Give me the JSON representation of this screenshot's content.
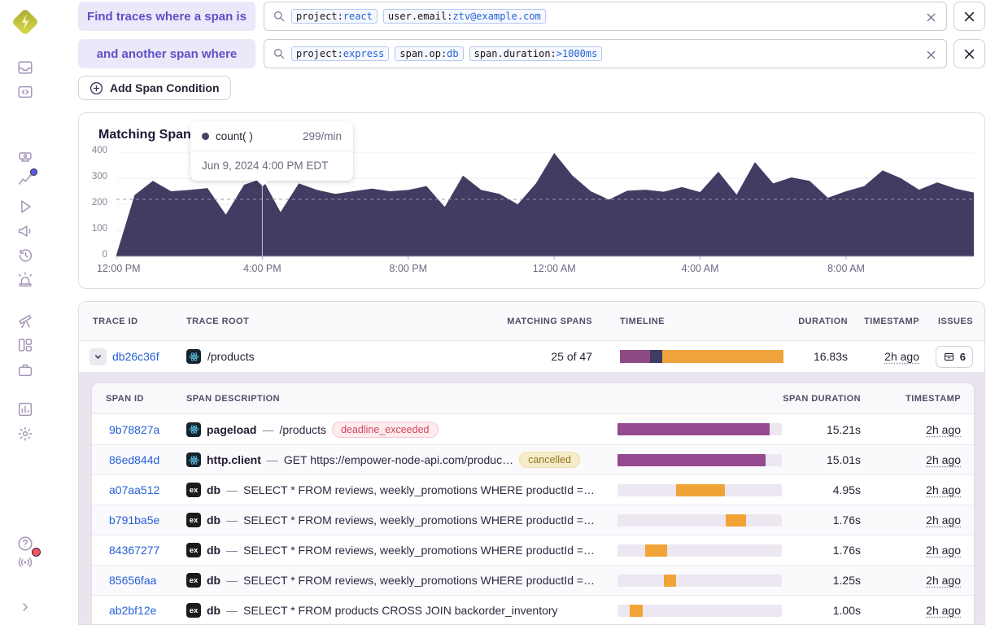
{
  "app": {
    "name": "Sentry"
  },
  "sidebar": {
    "items": [
      {
        "icon": "inbox-icon",
        "name": "issues"
      },
      {
        "icon": "code-folder-icon",
        "name": "projects"
      },
      {
        "icon": "lightning-icon",
        "name": "traces",
        "active": true
      },
      {
        "icon": "projector-icon",
        "name": "profiling"
      },
      {
        "icon": "chart-line-icon",
        "name": "insights",
        "dot": "blue"
      },
      {
        "icon": "play-icon",
        "name": "replays"
      },
      {
        "icon": "megaphone-icon",
        "name": "feedback"
      },
      {
        "icon": "history-icon",
        "name": "releases"
      },
      {
        "icon": "siren-icon",
        "name": "alerts"
      },
      {
        "icon": "telescope-icon",
        "name": "discover"
      },
      {
        "icon": "columns-icon",
        "name": "dashboards"
      },
      {
        "icon": "briefcase-icon",
        "name": "archive"
      },
      {
        "icon": "bar-chart-icon",
        "name": "stats"
      },
      {
        "icon": "gear-icon",
        "name": "settings"
      }
    ],
    "footer_items": [
      {
        "icon": "help-icon",
        "name": "help"
      },
      {
        "icon": "broadcast-icon",
        "name": "broadcast",
        "dot": "red"
      },
      {
        "icon": "chevron-right-icon",
        "name": "collapse"
      }
    ]
  },
  "query_builder": {
    "row1_label": "Find traces where a span is",
    "row2_label": "and another span where",
    "add_button_label": "Add Span Condition",
    "searches": [
      {
        "tokens": [
          {
            "key": "project:",
            "value": "react"
          },
          {
            "key": "user.email:",
            "value": "ztv@example.com"
          }
        ]
      },
      {
        "tokens": [
          {
            "key": "project:",
            "value": "express"
          },
          {
            "key": "span.op:",
            "value": "db"
          },
          {
            "key": "span.duration:",
            "value": ">1000ms"
          }
        ]
      }
    ]
  },
  "chart": {
    "title": "Matching Spans",
    "tooltip": {
      "series": "count( )",
      "value": "299/min",
      "date": "Jun 9, 2024 4:00 PM EDT"
    },
    "chart_data": {
      "type": "area",
      "title": "Matching Spans",
      "ylabel": "count() per min",
      "ylim": [
        0,
        400
      ],
      "y_ticks": [
        0,
        100,
        200,
        300,
        400
      ],
      "x_tick_labels": [
        "12:00 PM",
        "4:00 PM",
        "8:00 PM",
        "12:00 AM",
        "4:00 AM",
        "8:00 AM"
      ],
      "x_tick_indices": [
        0,
        8,
        16,
        24,
        32,
        40
      ],
      "interval": "30min",
      "grid": true,
      "legend_position": "tooltip-only",
      "average_line": 219,
      "series": [
        {
          "name": "count( )",
          "unit": "per min",
          "values": [
            5,
            235,
            290,
            250,
            255,
            262,
            160,
            275,
            299,
            170,
            280,
            255,
            240,
            250,
            260,
            250,
            255,
            270,
            190,
            310,
            255,
            240,
            200,
            280,
            397,
            310,
            250,
            218,
            252,
            256,
            248,
            266,
            247,
            325,
            237,
            362,
            280,
            303,
            290,
            225,
            250,
            270,
            330,
            300,
            256,
            284,
            260,
            245
          ]
        }
      ],
      "hover": {
        "index": 8,
        "value": 299,
        "label": "Jun 9, 2024 4:00 PM EDT"
      }
    }
  },
  "trace_table": {
    "columns": [
      "TRACE ID",
      "TRACE ROOT",
      "MATCHING SPANS",
      "TIMELINE",
      "DURATION",
      "TIMESTAMP",
      "ISSUES"
    ],
    "trace": {
      "id": "db26c36f",
      "root": "/products",
      "root_platform": "react",
      "matching": "25 of 47",
      "timeline_segments": [
        {
          "color": "#8d4a84",
          "width_pct": 18.4
        },
        {
          "color": "#3f3c65",
          "width_pct": 7.4
        },
        {
          "color": "#f0a23c",
          "width_pct": 74.2
        }
      ],
      "duration": "16.83s",
      "timestamp": "2h ago",
      "issues_count": "6"
    },
    "span_table": {
      "columns": [
        "SPAN ID",
        "SPAN DESCRIPTION",
        "SPAN DURATION",
        "TIMESTAMP"
      ],
      "separator": "—",
      "rows": [
        {
          "id": "9b78827a",
          "platform": "react",
          "op": "pageload",
          "description": "/products",
          "status": {
            "label": "deadline_exceeded",
            "type": "error"
          },
          "bar": {
            "left_pct": 0,
            "width_pct": 92.5,
            "color": "purple"
          },
          "duration": "15.21s",
          "timestamp": "2h ago"
        },
        {
          "id": "86ed844d",
          "platform": "react",
          "op": "http.client",
          "description": "GET https://empower-node-api.com/produc…",
          "status": {
            "label": "cancelled",
            "type": "warning"
          },
          "bar": {
            "left_pct": 0,
            "width_pct": 90,
            "color": "purple"
          },
          "duration": "15.01s",
          "timestamp": "2h ago"
        },
        {
          "id": "a07aa512",
          "platform": "express",
          "op": "db",
          "description": "SELECT * FROM reviews, weekly_promotions WHERE productId =…",
          "status": null,
          "bar": {
            "left_pct": 35.5,
            "width_pct": 30,
            "color": "orange"
          },
          "duration": "4.95s",
          "timestamp": "2h ago"
        },
        {
          "id": "b791ba5e",
          "platform": "express",
          "op": "db",
          "description": "SELECT * FROM reviews, weekly_promotions WHERE productId =…",
          "status": null,
          "bar": {
            "left_pct": 66,
            "width_pct": 12,
            "color": "orange"
          },
          "duration": "1.76s",
          "timestamp": "2h ago"
        },
        {
          "id": "84367277",
          "platform": "express",
          "op": "db",
          "description": "SELECT * FROM reviews, weekly_promotions WHERE productId =…",
          "status": null,
          "bar": {
            "left_pct": 17,
            "width_pct": 13,
            "color": "orange"
          },
          "duration": "1.76s",
          "timestamp": "2h ago"
        },
        {
          "id": "85656faa",
          "platform": "express",
          "op": "db",
          "description": "SELECT * FROM reviews, weekly_promotions WHERE productId =…",
          "status": null,
          "bar": {
            "left_pct": 28,
            "width_pct": 7.5,
            "color": "orange"
          },
          "duration": "1.25s",
          "timestamp": "2h ago"
        },
        {
          "id": "ab2bf12e",
          "platform": "express",
          "op": "db",
          "description": "SELECT * FROM products CROSS JOIN backorder_inventory",
          "status": null,
          "bar": {
            "left_pct": 7.5,
            "width_pct": 8,
            "color": "orange"
          },
          "duration": "1.00s",
          "timestamp": "2h ago"
        }
      ]
    }
  },
  "colors": {
    "accent_purple": "#5e51c6",
    "link_blue": "#2760d8",
    "area_fill": "#403c62",
    "bar_purple": "#934a8e",
    "bar_orange": "#f2a338",
    "timeline_purple": "#8d4a84",
    "timeline_navy": "#3f3c65",
    "status_error": "#d6455f",
    "status_warning": "#94761f"
  }
}
